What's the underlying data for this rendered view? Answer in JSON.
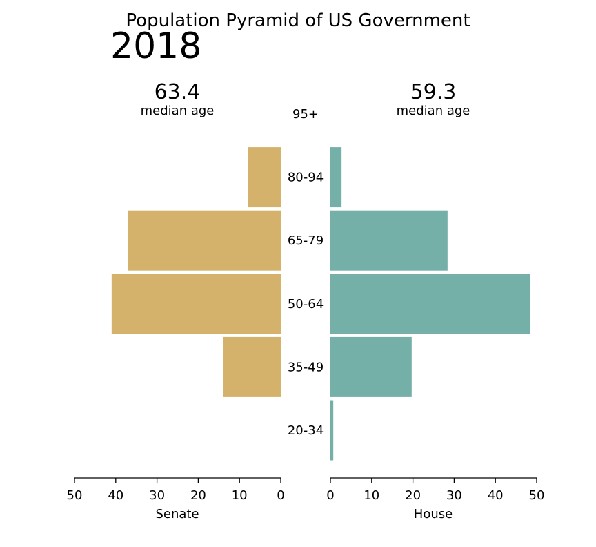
{
  "chart_data": {
    "type": "bar",
    "title": "Population Pyramid of US Government",
    "year": "2018",
    "categories": [
      "20-34",
      "35-49",
      "50-64",
      "65-79",
      "80-94",
      "95+"
    ],
    "series": [
      {
        "name": "Senate",
        "values": [
          0,
          14,
          41,
          37,
          8,
          0
        ],
        "median_value": "63.4",
        "median_label": "median age",
        "color": "#d4b26c",
        "xlim": [
          50,
          0
        ],
        "ticks": [
          50,
          40,
          30,
          20,
          10,
          0
        ]
      },
      {
        "name": "House",
        "values": [
          0.7,
          19.7,
          48.5,
          28.4,
          2.7,
          0
        ],
        "median_value": "59.3",
        "median_label": "median age",
        "color": "#74b0a8",
        "xlim": [
          0,
          50
        ],
        "ticks": [
          0,
          10,
          20,
          30,
          40,
          50
        ]
      }
    ],
    "grid": false,
    "legend": "none"
  }
}
